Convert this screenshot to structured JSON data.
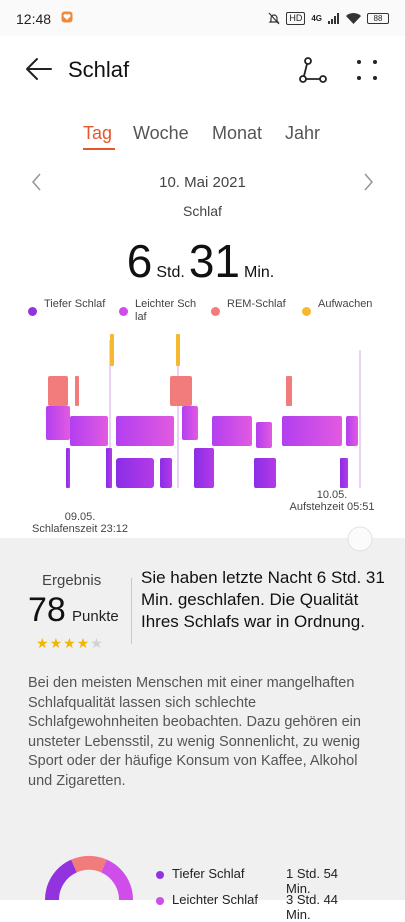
{
  "status_bar": {
    "time": "12:48",
    "lte": "4G",
    "badge": "HD",
    "battery": "88"
  },
  "header": {
    "title": "Schlaf"
  },
  "tabs": [
    {
      "label": "Tag",
      "active": true
    },
    {
      "label": "Woche",
      "active": false
    },
    {
      "label": "Monat",
      "active": false
    },
    {
      "label": "Jahr",
      "active": false
    }
  ],
  "date": {
    "label": "10. Mai 2021",
    "type": "Schlaf"
  },
  "duration": {
    "hours": "6",
    "hours_unit": "Std.",
    "minutes": "31",
    "minutes_unit": "Min."
  },
  "legend": [
    {
      "label": "Tiefer Schlaf",
      "color": "#9333e0"
    },
    {
      "label": "Leichter Schlaf",
      "color": "#cf4de8"
    },
    {
      "label": "REM-Schlaf",
      "color": "#f27c7c"
    },
    {
      "label": "Aufwachen",
      "color": "#f5b82e"
    }
  ],
  "timeline": {
    "start_date": "09.05.",
    "start_label": "Schlafenszeit 23:12",
    "end_date": "10.05.",
    "end_label": "Aufstehzeit 05:51"
  },
  "score": {
    "label": "Ergebnis",
    "value": "78",
    "unit": "Punkte",
    "stars": 4,
    "max_stars": 5,
    "description": "Sie haben letzte Nacht 6 Std. 31 Min. geschlafen. Die Qualität Ihres Schlafs war in Ordnung."
  },
  "advice": "Bei den meisten Menschen mit einer mangelhaften Schlafqualität lassen sich schlechte Schlafgewohnheiten beobachten. Dazu gehören ein unsteter Lebensstil, zu wenig Sonnenlicht, zu wenig Sport oder der häufige Konsum von Kaffee, Alkohol und Zigaretten.",
  "breakdown": [
    {
      "label": "Tiefer Schlaf",
      "value": "1 Std. 54 Min.",
      "color": "#9333e0"
    },
    {
      "label": "Leichter Schlaf",
      "value": "3 Std. 44 Min.",
      "color": "#cf4de8"
    }
  ],
  "colors": {
    "accent": "#e5572b",
    "deep": "#9333e0",
    "light": "#cf4de8",
    "rem": "#f27c7c",
    "awake": "#f5b82e"
  }
}
